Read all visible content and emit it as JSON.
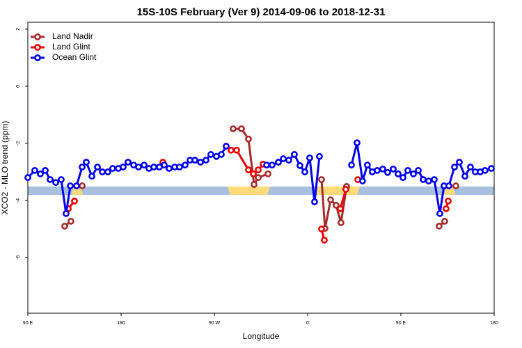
{
  "chart_data": {
    "type": "line",
    "title": "15S-10S February (Ver 9)   2014-09-06 to 2018-12-31",
    "x_label": "Longitude",
    "y_label": "XCO2 - MLO trend (ppm)",
    "xlim": [
      90,
      540
    ],
    "xticks": [
      {
        "value": 90,
        "label": "90 E"
      },
      {
        "value": 180,
        "label": "180"
      },
      {
        "value": 270,
        "label": "90 W"
      },
      {
        "value": 360,
        "label": "0"
      },
      {
        "value": 450,
        "label": "90 E"
      },
      {
        "value": 540,
        "label": "180"
      }
    ],
    "ylim": [
      -7.95,
      2.24
    ],
    "yticks": [
      2,
      0,
      -2,
      -4,
      -6
    ],
    "legend": "top-left",
    "series": [
      {
        "name": "Land Nadir",
        "color": "#a52a2a",
        "x": [
          125.6,
          131.6,
          null,
          142.4,
          null,
          288.1,
          296.2,
          302.9,
          308.3,
          312.3,
          321.7,
          null,
          373.4,
          376.8,
          382.2,
          387.5,
          392.2,
          397.6,
          null,
          486.9,
          492.3,
          null,
          503
        ],
        "values": [
          -4.9,
          -4.73,
          null,
          -3.49,
          null,
          -1.49,
          -1.49,
          -1.85,
          -3.44,
          -3.2,
          -3.07,
          null,
          -3.27,
          -4.98,
          -3.98,
          -4.17,
          -4.78,
          -3.51,
          null,
          -4.9,
          -4.73,
          null,
          -3.49
        ]
      },
      {
        "name": "Land Glint",
        "color": "#ee0000",
        "x": [
          129,
          135,
          null,
          220.3,
          null,
          286.1,
          291.5,
          302.9,
          307.6,
          312.3,
          317,
          null,
          373.4,
          376.1,
          null,
          391.5,
          396.9,
          null,
          408.4,
          null,
          493.6,
          495.7
        ],
        "values": [
          -4.29,
          -4.02,
          null,
          -2.66,
          null,
          -2.24,
          -2.24,
          -2.93,
          -3.07,
          -2.93,
          -2.73,
          null,
          -5.0,
          -5.39,
          null,
          -4.29,
          -3.61,
          null,
          -3.27,
          null,
          -4.29,
          -4.02
        ]
      },
      {
        "name": "Ocean Glint",
        "color": "#0000ee",
        "x": [
          90,
          96.7,
          102.1,
          106.8,
          111.5,
          116.9,
          122.2,
          126.9,
          131,
          137,
          142.4,
          146.4,
          151.8,
          157.2,
          161.9,
          167.2,
          171.9,
          177.3,
          182,
          186.7,
          192.1,
          196.8,
          202.2,
          206.9,
          211.6,
          216.9,
          221.6,
          226.3,
          231.7,
          236.4,
          241.8,
          246.5,
          251.2,
          256.6,
          261.9,
          266.6,
          272,
          276.7,
          281.4,
          null,
          320.4,
          325.7,
          331.8,
          336.5,
          341.8,
          347.2,
          352.6,
          357.3,
          362,
          366.7,
          371.4,
          null,
          402.3,
          407.7,
          413,
          417.7,
          422.4,
          427.1,
          432.5,
          437.2,
          442.6,
          447.3,
          452,
          456.7,
          462.1,
          466.8,
          471.5,
          476.8,
          482.2,
          487.6,
          491.6,
          496.3,
          501.7,
          506.4,
          511.8,
          517.1,
          521.8,
          526.5,
          531.2,
          537.3
        ],
        "values": [
          -3.2,
          -2.95,
          -3.07,
          -2.95,
          -3.27,
          -3.37,
          -3.27,
          -4.46,
          -3.49,
          -3.49,
          -2.83,
          -2.66,
          -3.15,
          -2.83,
          -3.0,
          -3.0,
          -2.88,
          -2.88,
          -2.83,
          -2.66,
          -2.76,
          -2.83,
          -2.76,
          -2.88,
          -2.83,
          -2.83,
          -2.76,
          -2.88,
          -2.83,
          -2.83,
          -2.76,
          -2.59,
          -2.59,
          -2.66,
          -2.59,
          -2.39,
          -2.46,
          -2.39,
          -2.1,
          null,
          -2.76,
          -2.76,
          -2.66,
          -2.54,
          -2.59,
          -2.39,
          -2.78,
          -3.0,
          -2.51,
          -4.05,
          -2.46,
          null,
          -2.76,
          -1.98,
          -3.32,
          -2.76,
          -3.0,
          -2.95,
          -2.9,
          -3.02,
          -2.9,
          -3.07,
          -3.2,
          -2.95,
          -3.07,
          -2.95,
          -3.27,
          -3.32,
          -3.27,
          -4.46,
          -3.49,
          -3.49,
          -2.83,
          -2.66,
          -3.15,
          -2.83,
          -3.0,
          -3.0,
          -2.95,
          -2.88
        ]
      }
    ]
  }
}
